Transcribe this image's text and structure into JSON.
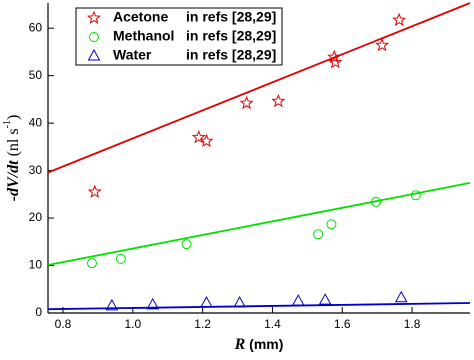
{
  "chart_data": {
    "type": "scatter",
    "x_label": [
      "R",
      " (mm)"
    ],
    "y_label": [
      "-dV/dt",
      " (nl s",
      "-1",
      ")"
    ],
    "xlim": [
      0.757,
      1.966
    ],
    "ylim": [
      0,
      65.3
    ],
    "xticks": [
      0.8,
      {
        "value": 1,
        "label": "1.0"
      },
      1.2,
      1.4,
      1.6,
      1.8
    ],
    "yticks": [
      0,
      10,
      20,
      30,
      40,
      50,
      60
    ],
    "legend": "upper left",
    "series": [
      {
        "name": "Acetone",
        "ref": "in refs [28,29]",
        "color": "#e00000",
        "marker": "star",
        "x": [
          0.891,
          1.189,
          1.211,
          1.326,
          1.417,
          1.577,
          1.58,
          1.714,
          1.763
        ],
        "values": [
          25.5,
          37,
          36.2,
          44.2,
          44.6,
          53.9,
          52.8,
          56.4,
          61.7
        ],
        "fit": {
          "x": [
            0.757,
            1.966
          ],
          "values": [
            29.6,
            65.3
          ]
        }
      },
      {
        "name": "Methanol",
        "ref": "in refs [28,29]",
        "color": "#00e000",
        "marker": "circle",
        "x": [
          0.883,
          0.966,
          1.154,
          1.531,
          1.569,
          1.697,
          1.811
        ],
        "values": [
          10.5,
          11.4,
          14.5,
          16.6,
          18.7,
          23.4,
          24.8
        ],
        "fit": {
          "x": [
            0.757,
            1.966
          ],
          "values": [
            10.1,
            27.4
          ]
        }
      },
      {
        "name": "Water",
        "ref": "in refs [28,29]",
        "color": "#0000c8",
        "marker": "triangle",
        "x": [
          0.94,
          1.057,
          1.211,
          1.306,
          1.474,
          1.551,
          1.769
        ],
        "values": [
          1.5,
          1.7,
          2.1,
          2.1,
          2.5,
          2.7,
          3.2
        ],
        "fit": {
          "x": [
            0.757,
            1.966
          ],
          "values": [
            0.8,
            2.1
          ]
        }
      }
    ]
  }
}
